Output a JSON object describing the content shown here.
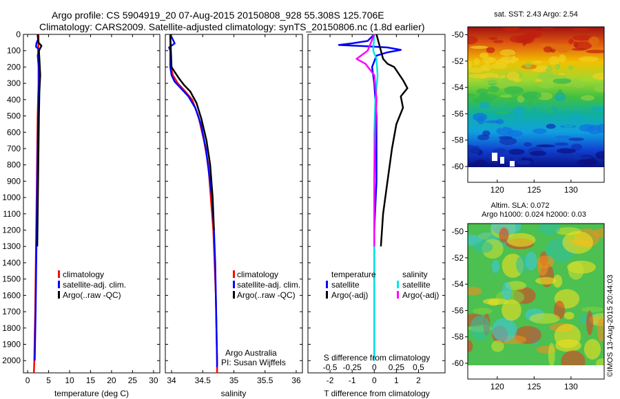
{
  "header": {
    "line1": "Argo profile: CS 5904919_20 07-Aug-2015 20150808_928 55.308S 125.706E",
    "line2": "Climatology: CARS2009. Satellite-adjusted climatology: synTS_20150806.nc (1.8d earlier)"
  },
  "side_stamp": "©IMOS 13-Aug-2015 20:44:03",
  "colors": {
    "climatology": "#ff0000",
    "satellite": "#0000ff",
    "argo": "#000000",
    "sal_satellite": "#00e5e5",
    "sal_argo": "#ff00ff"
  },
  "chart_data": [
    {
      "type": "line",
      "name": "temperature-panel",
      "xlabel": "temperature (deg C)",
      "ylabel": "",
      "xlim": [
        -1,
        31.5
      ],
      "ylim": [
        2075,
        0
      ],
      "xticks": [
        0,
        5,
        10,
        15,
        20,
        25,
        30
      ],
      "yticks": [
        0,
        100,
        200,
        300,
        400,
        500,
        600,
        700,
        800,
        900,
        1000,
        1100,
        1200,
        1300,
        1400,
        1500,
        1600,
        1700,
        1800,
        1900,
        2000
      ],
      "legend": [
        "climatology",
        "satellite-adj. clim.",
        "Argo(..raw -QC)"
      ],
      "legend_position": "lower-center",
      "series": [
        {
          "name": "climatology",
          "color": "#ff0000",
          "x": [
            2.6,
            2.6,
            2.5,
            2.5,
            2.6,
            2.6,
            2.5,
            2.4,
            2.3,
            2.2,
            2.1,
            2.0,
            1.9,
            1.8,
            1.7,
            1.6,
            1.5
          ],
          "y": [
            0,
            50,
            100,
            150,
            200,
            300,
            400,
            500,
            700,
            900,
            1100,
            1300,
            1500,
            1700,
            1850,
            2000,
            2075
          ]
        },
        {
          "name": "satellite-adj. clim.",
          "color": "#0000ff",
          "x": [
            2.4,
            2.5,
            2.1,
            2.0,
            2.8,
            2.4,
            2.7,
            2.7,
            2.6,
            2.5,
            2.4,
            2.3,
            2.2,
            2.1,
            2.0,
            1.9,
            1.7
          ],
          "y": [
            0,
            30,
            55,
            75,
            95,
            130,
            200,
            300,
            400,
            500,
            700,
            900,
            1100,
            1300,
            1500,
            1700,
            2000
          ]
        },
        {
          "name": "Argo(..raw -QC)",
          "color": "#000000",
          "x": [
            2.4,
            2.5,
            2.6,
            3.3,
            2.7,
            2.8,
            3.0,
            2.8,
            2.7,
            2.6,
            2.5,
            2.4,
            2.3
          ],
          "y": [
            0,
            30,
            50,
            70,
            100,
            150,
            250,
            350,
            500,
            700,
            900,
            1100,
            1300
          ]
        }
      ]
    },
    {
      "type": "line",
      "name": "salinity-panel",
      "xlabel": "salinity",
      "ylabel": "",
      "xlim": [
        33.9,
        36.1
      ],
      "ylim": [
        2075,
        0
      ],
      "xticks": [
        34,
        34.5,
        35,
        35.5,
        36
      ],
      "xtick_labels": [
        "34",
        "34.5",
        "35",
        "35.5",
        "36"
      ],
      "legend": [
        "climatology",
        "satellite-adj. clim.",
        "Argo(..raw -QC)"
      ],
      "legend_position": "lower-right",
      "annotation": [
        "Argo Australia",
        "PI: Susan Wijffels"
      ],
      "series": [
        {
          "name": "climatology",
          "color": "#ff0000",
          "x": [
            33.98,
            33.98,
            33.99,
            34.02,
            34.1,
            34.22,
            34.33,
            34.43,
            34.52,
            34.59,
            34.63,
            34.67,
            34.69,
            34.71,
            34.72,
            34.73,
            34.73
          ],
          "y": [
            0,
            100,
            200,
            250,
            300,
            350,
            400,
            500,
            650,
            800,
            1000,
            1200,
            1400,
            1600,
            1800,
            2000,
            2075
          ]
        },
        {
          "name": "satellite-adj. clim.",
          "color": "#0000ff",
          "x": [
            33.98,
            34.05,
            33.96,
            33.98,
            33.98,
            34.0,
            34.05,
            34.15,
            34.27,
            34.38,
            34.47,
            34.55,
            34.6,
            34.65,
            34.68,
            34.7,
            34.71,
            34.72,
            34.73,
            34.73
          ],
          "y": [
            0,
            55,
            80,
            100,
            200,
            250,
            290,
            330,
            380,
            450,
            550,
            700,
            850,
            1000,
            1200,
            1400,
            1600,
            1800,
            2000,
            2040
          ]
        },
        {
          "name": "Argo(..raw -QC)",
          "color": "#000000",
          "x": [
            33.98,
            33.99,
            34.0,
            34.05,
            34.12,
            34.2,
            34.3,
            34.4,
            34.48,
            34.56,
            34.62,
            34.66,
            34.68
          ],
          "y": [
            0,
            100,
            200,
            230,
            270,
            310,
            350,
            420,
            520,
            650,
            800,
            1000,
            1200
          ]
        }
      ]
    },
    {
      "type": "line",
      "name": "difference-panel",
      "xlabel": "T difference from climatology",
      "secondary_xlabel": "S difference from climatology",
      "ylabel": "",
      "xlim": [
        -3,
        3.2
      ],
      "ylim": [
        2075,
        0
      ],
      "xticks": [
        -2,
        -1,
        0,
        1,
        2
      ],
      "secondary_xticks": [
        -0.5,
        -0.25,
        0,
        0.25,
        0.5
      ],
      "secondary_xtick_labels": [
        "-0.5",
        "-0.25",
        "0",
        "0.25",
        "0.5"
      ],
      "legend_groups": [
        {
          "title": "temperature",
          "entries": [
            "satellite",
            "Argo(-adj)"
          ]
        },
        {
          "title": "salinity",
          "entries": [
            "satellite",
            "Argo(-adj)"
          ]
        }
      ],
      "series": [
        {
          "name": "temperature satellite",
          "color": "#0000ff",
          "x": [
            0,
            -0.3,
            -1.0,
            -1.6,
            -0.4,
            0.6,
            1.2,
            0.6,
            0.1,
            -0.1,
            0.0,
            0.1,
            0.1,
            0.1,
            0.0,
            0.0,
            0.0
          ],
          "y": [
            0,
            40,
            55,
            65,
            72,
            80,
            95,
            110,
            130,
            200,
            300,
            500,
            700,
            900,
            1200,
            1600,
            2000
          ]
        },
        {
          "name": "temperature Argo(-adj)",
          "color": "#000000",
          "x": [
            0.1,
            0.3,
            0.4,
            0.6,
            0.9,
            1.1,
            1.3,
            1.5,
            1.2,
            1.3,
            1.0,
            0.8,
            0.6,
            0.4,
            0.3
          ],
          "y": [
            0,
            100,
            150,
            180,
            200,
            240,
            280,
            330,
            380,
            450,
            550,
            700,
            900,
            1100,
            1300
          ]
        },
        {
          "name": "salinity satellite",
          "color": "#00e5e5",
          "x": [
            0.0,
            -0.05,
            0.1,
            0.15,
            0.05,
            0.0,
            0.0,
            0.0,
            0.0
          ],
          "y": [
            0,
            100,
            150,
            250,
            400,
            600,
            1000,
            1500,
            2000
          ]
        },
        {
          "name": "salinity Argo(-adj)",
          "color": "#ff00ff",
          "x": [
            0.0,
            -0.3,
            -0.8,
            -0.4,
            0.0,
            0.1,
            0.05,
            0.0,
            0.0
          ],
          "y": [
            0,
            100,
            150,
            180,
            250,
            400,
            600,
            900,
            1300
          ]
        }
      ]
    },
    {
      "type": "heatmap",
      "name": "sst-map",
      "title": "sat. SST: 2.43  Argo: 2.54",
      "xlim": [
        116,
        134.5
      ],
      "ylim": [
        -61.2,
        -49.4
      ],
      "xticks": [
        120,
        125,
        130
      ],
      "yticks": [
        -50,
        -52,
        -54,
        -56,
        -58,
        -60
      ]
    },
    {
      "type": "heatmap",
      "name": "sla-map",
      "title_lines": [
        "Altim. SLA: 0.072",
        "Argo h1000: 0.024 h2000: 0.03"
      ],
      "xlim": [
        116,
        134.5
      ],
      "ylim": [
        -61.2,
        -49.4
      ],
      "xticks": [
        120,
        125,
        130
      ],
      "yticks": [
        -50,
        -52,
        -54,
        -56,
        -58,
        -60
      ]
    }
  ]
}
